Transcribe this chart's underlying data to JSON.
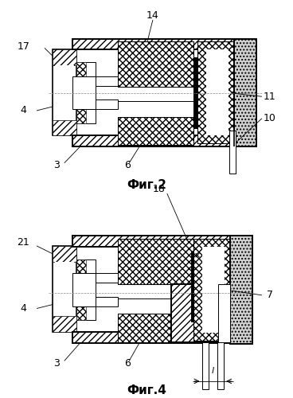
{
  "bg_color": "#ffffff",
  "fig2_title": "Фиг.2",
  "fig4_title": "Фиг.4",
  "title_fontsize": 11,
  "label_fontsize": 9
}
